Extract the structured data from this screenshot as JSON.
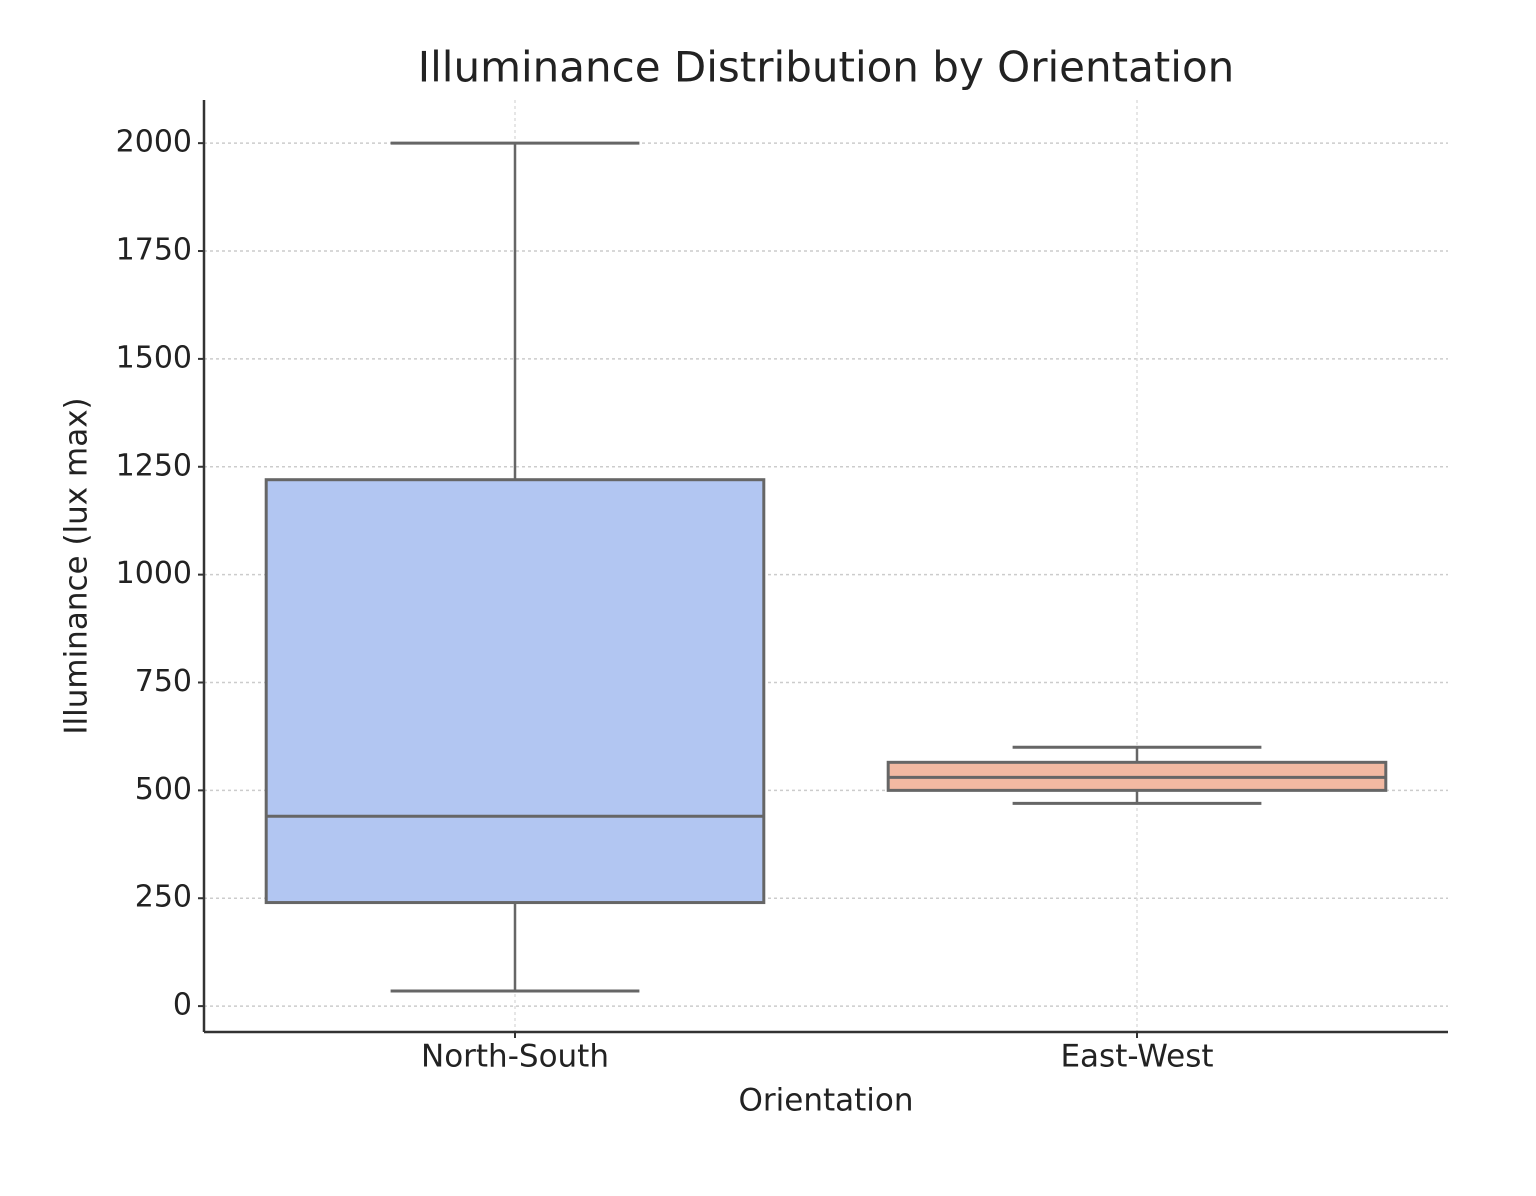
{
  "chart_data": {
    "type": "box",
    "title": "Illuminance Distribution by Orientation",
    "xlabel": "Orientation",
    "ylabel": "Illuminance (lux max)",
    "categories": [
      "North-South",
      "East-West"
    ],
    "boxes": [
      {
        "min": 35,
        "q1": 240,
        "median": 440,
        "q3": 1220,
        "max": 2000
      },
      {
        "min": 470,
        "q1": 500,
        "median": 530,
        "q3": 565,
        "max": 600
      }
    ],
    "colors": [
      "#b2c6f2",
      "#f2b9a2"
    ],
    "edge_color": "#666666",
    "ylim": [
      -60,
      2100
    ],
    "yticks": [
      0,
      250,
      500,
      750,
      1000,
      1250,
      1500,
      1750,
      2000
    ],
    "grid": true
  }
}
